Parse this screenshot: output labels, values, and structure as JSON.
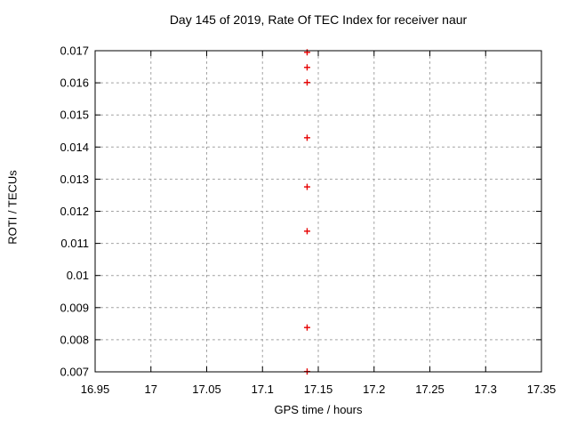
{
  "chart_data": {
    "type": "scatter",
    "title": "Day 145 of 2019, Rate Of TEC Index for receiver naur",
    "xlabel": "GPS time / hours",
    "ylabel": "ROTI / TECUs",
    "xlim": [
      16.95,
      17.35
    ],
    "ylim": [
      0.007,
      0.017
    ],
    "x_tick_values": [
      16.95,
      17.0,
      17.05,
      17.1,
      17.15,
      17.2,
      17.25,
      17.3,
      17.35
    ],
    "x_tick_labels": [
      "16.95",
      "17",
      "17.05",
      "17.1",
      "17.15",
      "17.2",
      "17.25",
      "17.3",
      "17.35"
    ],
    "y_tick_values": [
      0.007,
      0.008,
      0.009,
      0.01,
      0.011,
      0.012,
      0.013,
      0.014,
      0.015,
      0.016,
      0.017
    ],
    "y_tick_labels": [
      "0.007",
      "0.008",
      "0.009",
      "0.01",
      "0.011",
      "0.012",
      "0.013",
      "0.014",
      "0.015",
      "0.016",
      "0.017"
    ],
    "grid": true,
    "legend_position": "none",
    "series": [
      {
        "name": "ROTI",
        "marker": "plus",
        "color": "#e60000",
        "points": [
          {
            "x": 17.14,
            "y": 0.01695
          },
          {
            "x": 17.14,
            "y": 0.01648
          },
          {
            "x": 17.14,
            "y": 0.01601
          },
          {
            "x": 17.14,
            "y": 0.01429
          },
          {
            "x": 17.14,
            "y": 0.01276
          },
          {
            "x": 17.14,
            "y": 0.01138
          },
          {
            "x": 17.14,
            "y": 0.00838
          },
          {
            "x": 17.14,
            "y": 0.00701
          }
        ]
      }
    ],
    "style": {
      "background": "#ffffff",
      "axis_color": "#000000",
      "grid_color": "#a0a0a0",
      "text_color": "#000000"
    }
  }
}
